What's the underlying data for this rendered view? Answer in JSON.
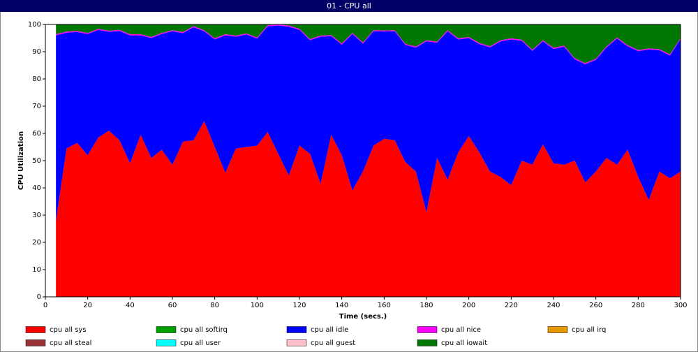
{
  "chart_data": {
    "type": "stacked_area",
    "title": "01 - CPU all",
    "xlabel": "Time (secs.)",
    "ylabel": "CPU Utilization",
    "x": [
      5,
      10,
      15,
      20,
      25,
      30,
      35,
      40,
      45,
      50,
      55,
      60,
      65,
      70,
      75,
      80,
      85,
      90,
      95,
      100,
      105,
      110,
      115,
      120,
      125,
      130,
      135,
      140,
      145,
      150,
      155,
      160,
      165,
      170,
      175,
      180,
      185,
      190,
      195,
      200,
      205,
      210,
      215,
      220,
      225,
      230,
      235,
      240,
      245,
      250,
      255,
      260,
      265,
      270,
      275,
      280,
      285,
      290,
      295,
      300
    ],
    "xlim": [
      0,
      300
    ],
    "xticks": [
      0,
      20,
      40,
      60,
      80,
      100,
      120,
      140,
      160,
      180,
      200,
      220,
      240,
      260,
      280,
      300
    ],
    "ylim": [
      0,
      100
    ],
    "yticks": [
      0,
      10,
      20,
      30,
      40,
      50,
      60,
      70,
      80,
      90,
      100
    ],
    "series": [
      {
        "name": "cpu all sys",
        "color": "#ff0000",
        "values": [
          28,
          54.5,
          56.5,
          52,
          58.5,
          61,
          57.5,
          49,
          59.5,
          51,
          54,
          48.5,
          57,
          57.5,
          64.5,
          55,
          45.5,
          54.5,
          55,
          55.5,
          60.5,
          52.5,
          44.5,
          55.5,
          52.5,
          41.5,
          59.5,
          52,
          39,
          46,
          55.5,
          58,
          57.5,
          49.5,
          46,
          31,
          51,
          43,
          53,
          59,
          53,
          46,
          44,
          41,
          50,
          48.5,
          56,
          49,
          48.5,
          50,
          42,
          46,
          51,
          48.5,
          54,
          44,
          35.5,
          46,
          43.5,
          46
        ]
      },
      {
        "name": "cpu all softirq",
        "color": "#00a000",
        "values": [
          0,
          0,
          0,
          0,
          0,
          0,
          0,
          0,
          0,
          0,
          0,
          0,
          0,
          0,
          0,
          0,
          0,
          0,
          0,
          0,
          0,
          0,
          0,
          0,
          0,
          0,
          0,
          0,
          0,
          0,
          0,
          0,
          0,
          0,
          0,
          0,
          0,
          0,
          0,
          0,
          0,
          0,
          0,
          0,
          0,
          0,
          0,
          0,
          0,
          0,
          0,
          0,
          0,
          0,
          0,
          0,
          0,
          0,
          0,
          0
        ]
      },
      {
        "name": "cpu all idle",
        "color": "#0000ff",
        "values": [
          68,
          42.5,
          40.7,
          44.5,
          39.5,
          36.3,
          40.1,
          47,
          36.5,
          44,
          42.5,
          49,
          39.8,
          41.5,
          33,
          39.5,
          50.5,
          41,
          41.3,
          39.3,
          38.8,
          47.1,
          54.7,
          42.5,
          41.7,
          54,
          36.2,
          40.6,
          57.5,
          47,
          42,
          39.4,
          40,
          43,
          45.5,
          62.8,
          42.3,
          54.5,
          41.5,
          36,
          39.8,
          45.6,
          49.8,
          53.5,
          44,
          41.8,
          37.8,
          42,
          43.3,
          37.2,
          43.4,
          41,
          40.5,
          46.3,
          38,
          46.2,
          55.3,
          44.5,
          45.1,
          48.6
        ]
      },
      {
        "name": "cpu all nice",
        "color": "#ff00ff",
        "values": [
          0.4,
          0.4,
          0.4,
          0.4,
          0.4,
          0.4,
          0.4,
          0.4,
          0.4,
          0.4,
          0.4,
          0.4,
          0.4,
          0.4,
          0.4,
          0.4,
          0.4,
          0.4,
          0.4,
          0.4,
          0.4,
          0.4,
          0.4,
          0.4,
          0.4,
          0.4,
          0.4,
          0.4,
          0.4,
          0.4,
          0.4,
          0.4,
          0.4,
          0.4,
          0.4,
          0.4,
          0.4,
          0.4,
          0.4,
          0.4,
          0.4,
          0.4,
          0.4,
          0.4,
          0.4,
          0.4,
          0.4,
          0.4,
          0.4,
          0.4,
          0.4,
          0.4,
          0.4,
          0.4,
          0.4,
          0.4,
          0.4,
          0.4,
          0.4,
          0.4
        ]
      },
      {
        "name": "cpu all irq",
        "color": "#e69900",
        "values": [
          0,
          0,
          0,
          0,
          0,
          0,
          0,
          0,
          0,
          0,
          0,
          0,
          0,
          0,
          0,
          0,
          0,
          0,
          0,
          0,
          0,
          0,
          0,
          0,
          0,
          0,
          0,
          0,
          0,
          0,
          0,
          0,
          0,
          0,
          0,
          0,
          0,
          0,
          0,
          0,
          0,
          0,
          0,
          0,
          0,
          0,
          0,
          0,
          0,
          0,
          0,
          0,
          0,
          0,
          0,
          0,
          0,
          0,
          0,
          0
        ]
      },
      {
        "name": "cpu all steal",
        "color": "#993333",
        "values": [
          0,
          0,
          0,
          0,
          0,
          0,
          0,
          0,
          0,
          0,
          0,
          0,
          0,
          0,
          0,
          0,
          0,
          0,
          0,
          0,
          0,
          0,
          0,
          0,
          0,
          0,
          0,
          0,
          0,
          0,
          0,
          0,
          0,
          0,
          0,
          0,
          0,
          0,
          0,
          0,
          0,
          0,
          0,
          0,
          0,
          0,
          0,
          0,
          0,
          0,
          0,
          0,
          0,
          0,
          0,
          0,
          0,
          0,
          0,
          0
        ]
      },
      {
        "name": "cpu all user",
        "color": "#00ffff",
        "values": [
          0,
          0,
          0,
          0,
          0,
          0,
          0,
          0,
          0,
          0,
          0,
          0,
          0,
          0,
          0,
          0,
          0,
          0,
          0,
          0,
          0,
          0,
          0,
          0,
          0,
          0,
          0,
          0,
          0,
          0,
          0,
          0,
          0,
          0,
          0,
          0,
          0,
          0,
          0,
          0,
          0,
          0,
          0,
          0,
          0,
          0,
          0,
          0,
          0,
          0,
          0,
          0,
          0,
          0,
          0,
          0,
          0,
          0,
          0,
          0
        ]
      },
      {
        "name": "cpu all guest",
        "color": "#ffc0cb",
        "values": [
          0,
          0,
          0,
          0,
          0,
          0,
          0,
          0,
          0,
          0,
          0,
          0,
          0,
          0,
          0,
          0,
          0,
          0,
          0,
          0,
          0,
          0,
          0,
          0,
          0,
          0,
          0,
          0,
          0,
          0,
          0,
          0,
          0,
          0,
          0,
          0,
          0,
          0,
          0,
          0,
          0,
          0,
          0,
          0,
          0,
          0,
          0,
          0,
          0,
          0,
          0,
          0,
          0,
          0,
          0,
          0,
          0,
          0,
          0,
          0
        ]
      },
      {
        "name": "cpu all iowait",
        "color": "#007700",
        "values": [
          3.6,
          2.6,
          2.4,
          3.1,
          1.6,
          2.3,
          2,
          3.6,
          3.6,
          4.6,
          3.1,
          2.1,
          2.8,
          0.6,
          2.1,
          5.1,
          3.6,
          4.1,
          3.3,
          4.8,
          0.3,
          0,
          0.4,
          1.6,
          5.4,
          4.1,
          3.9,
          7,
          3.1,
          6.6,
          2.1,
          2.2,
          2.1,
          7.1,
          8.1,
          5.8,
          6.3,
          2.1,
          5.1,
          4.6,
          6.8,
          8,
          5.8,
          5.1,
          5.6,
          9.3,
          5.8,
          8.6,
          7.8,
          12.4,
          14.2,
          12.6,
          8.1,
          4.8,
          7.6,
          9.4,
          8.8,
          9.1,
          11,
          5
        ]
      }
    ],
    "legend": "bottom"
  }
}
